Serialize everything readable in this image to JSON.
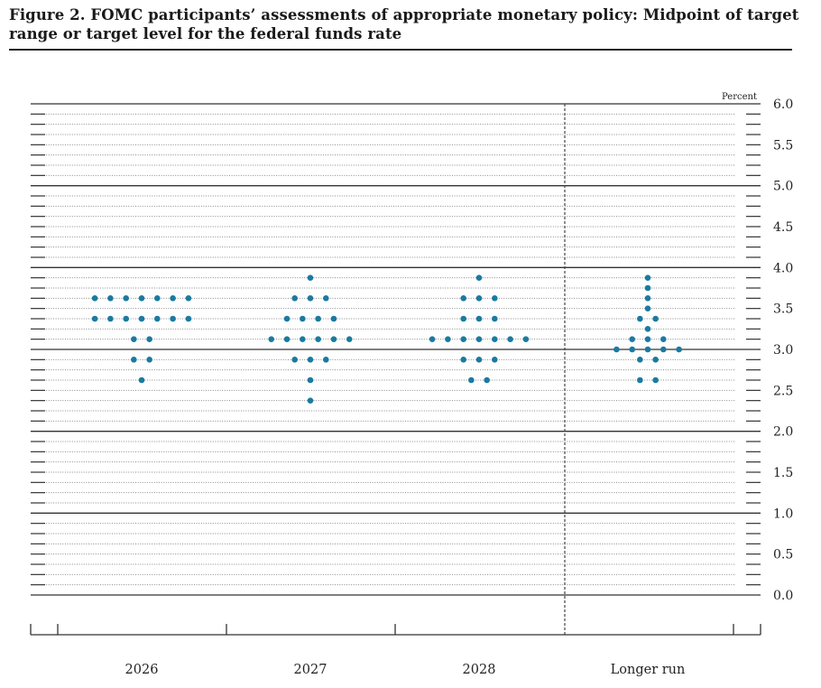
{
  "title": "Figure 2. FOMC participants’ assessments of appropriate monetary policy: Midpoint of target range or target level for the federal funds rate",
  "chart_data": {
    "type": "scatter",
    "ylabel": "Percent",
    "ylim": [
      0,
      6.0
    ],
    "yticks": [
      "0.0",
      "0.5",
      "1.0",
      "1.5",
      "2.0",
      "2.5",
      "3.0",
      "3.5",
      "4.0",
      "4.5",
      "5.0",
      "5.5",
      "6.0"
    ],
    "categories": [
      "2026",
      "2027",
      "2028",
      "Longer run"
    ],
    "dot_color": "#1a7aa0",
    "grid": "dotted minor lines every 0.125; solid lines at 1.0 intervals",
    "longer_run_separator": "dashed vertical line",
    "dots": [
      {
        "category": "2026",
        "values": [
          {
            "y": 3.625,
            "count": 7
          },
          {
            "y": 3.375,
            "count": 7
          },
          {
            "y": 3.125,
            "count": 2
          },
          {
            "y": 2.875,
            "count": 2
          },
          {
            "y": 2.625,
            "count": 1
          }
        ]
      },
      {
        "category": "2027",
        "values": [
          {
            "y": 3.875,
            "count": 1
          },
          {
            "y": 3.625,
            "count": 3
          },
          {
            "y": 3.375,
            "count": 4
          },
          {
            "y": 3.125,
            "count": 6
          },
          {
            "y": 2.875,
            "count": 3
          },
          {
            "y": 2.625,
            "count": 1
          },
          {
            "y": 2.375,
            "count": 1
          }
        ]
      },
      {
        "category": "2028",
        "values": [
          {
            "y": 3.875,
            "count": 1
          },
          {
            "y": 3.625,
            "count": 3
          },
          {
            "y": 3.375,
            "count": 3
          },
          {
            "y": 3.125,
            "count": 7
          },
          {
            "y": 2.875,
            "count": 3
          },
          {
            "y": 2.625,
            "count": 2
          }
        ]
      },
      {
        "category": "Longer run",
        "values": [
          {
            "y": 3.875,
            "count": 1
          },
          {
            "y": 3.75,
            "count": 1
          },
          {
            "y": 3.625,
            "count": 1
          },
          {
            "y": 3.5,
            "count": 1
          },
          {
            "y": 3.375,
            "count": 2
          },
          {
            "y": 3.25,
            "count": 1
          },
          {
            "y": 3.125,
            "count": 3
          },
          {
            "y": 3.0,
            "count": 5
          },
          {
            "y": 2.875,
            "count": 2
          },
          {
            "y": 2.625,
            "count": 2
          }
        ]
      }
    ]
  }
}
